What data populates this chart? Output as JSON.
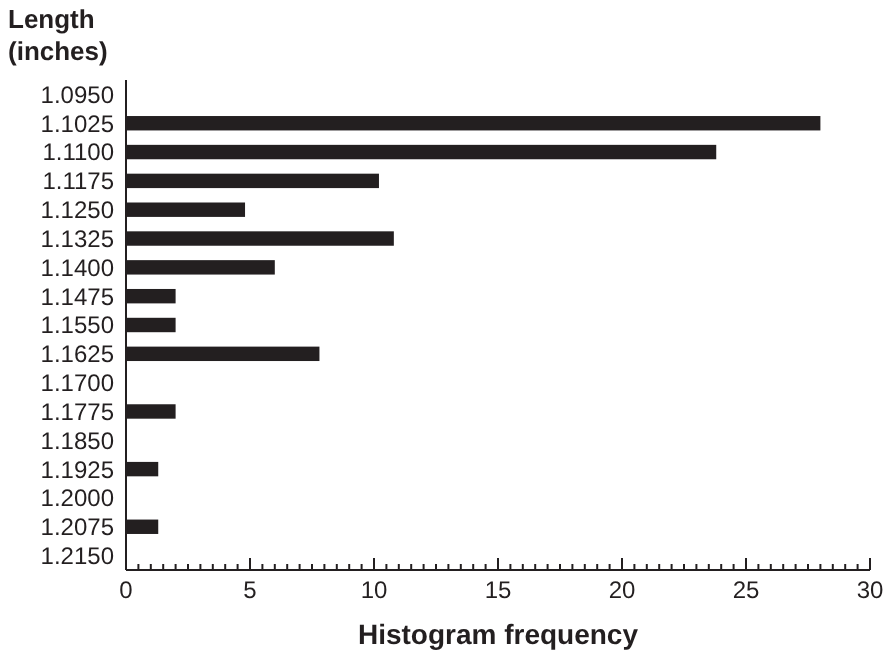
{
  "chart_data": {
    "type": "bar",
    "orientation": "horizontal",
    "ylabel": "Length\n(inches)",
    "xlabel": "Histogram frequency",
    "color": "#231f20",
    "categories": [
      "1.0950",
      "1.1025",
      "1.1100",
      "1.1175",
      "1.1250",
      "1.1325",
      "1.1400",
      "1.1475",
      "1.1550",
      "1.1625",
      "1.1700",
      "1.1775",
      "1.1850",
      "1.1925",
      "1.2000",
      "1.2075",
      "1.2150"
    ],
    "values": [
      0,
      28,
      23.8,
      10.2,
      4.8,
      10.8,
      6,
      2,
      2,
      7.8,
      0,
      2,
      0,
      1.3,
      0,
      1.3,
      0
    ],
    "xlim": [
      0,
      30
    ],
    "xticks": [
      0,
      {
        "value": 0.5,
        "label": null
      },
      {
        "value": 1,
        "label": null
      },
      {
        "value": 1.5,
        "label": null
      },
      {
        "value": 2,
        "label": null
      },
      {
        "value": 2.5,
        "label": null
      },
      {
        "value": 3,
        "label": null
      },
      {
        "value": 3.5,
        "label": null
      },
      {
        "value": 4,
        "label": null
      },
      {
        "value": 4.5,
        "label": null
      },
      5,
      {
        "value": 5.5,
        "label": null
      },
      {
        "value": 6,
        "label": null
      },
      {
        "value": 6.5,
        "label": null
      },
      {
        "value": 7,
        "label": null
      },
      {
        "value": 7.5,
        "label": null
      },
      {
        "value": 8,
        "label": null
      },
      {
        "value": 8.5,
        "label": null
      },
      {
        "value": 9,
        "label": null
      },
      {
        "value": 9.5,
        "label": null
      },
      10,
      {
        "value": 10.5,
        "label": null
      },
      {
        "value": 11,
        "label": null
      },
      {
        "value": 11.5,
        "label": null
      },
      {
        "value": 12,
        "label": null
      },
      {
        "value": 12.5,
        "label": null
      },
      {
        "value": 13,
        "label": null
      },
      {
        "value": 13.5,
        "label": null
      },
      {
        "value": 14,
        "label": null
      },
      {
        "value": 14.5,
        "label": null
      },
      15,
      {
        "value": 15.5,
        "label": null
      },
      {
        "value": 16,
        "label": null
      },
      {
        "value": 16.5,
        "label": null
      },
      {
        "value": 17,
        "label": null
      },
      {
        "value": 17.5,
        "label": null
      },
      {
        "value": 18,
        "label": null
      },
      {
        "value": 18.5,
        "label": null
      },
      {
        "value": 19,
        "label": null
      },
      {
        "value": 19.5,
        "label": null
      },
      20,
      {
        "value": 20.5,
        "label": null
      },
      {
        "value": 21,
        "label": null
      },
      {
        "value": 21.5,
        "label": null
      },
      {
        "value": 22,
        "label": null
      },
      {
        "value": 22.5,
        "label": null
      },
      {
        "value": 23,
        "label": null
      },
      {
        "value": 23.5,
        "label": null
      },
      {
        "value": 24,
        "label": null
      },
      {
        "value": 24.5,
        "label": null
      },
      25,
      {
        "value": 25.5,
        "label": null
      },
      {
        "value": 26,
        "label": null
      },
      {
        "value": 26.5,
        "label": null
      },
      {
        "value": 27,
        "label": null
      },
      {
        "value": 27.5,
        "label": null
      },
      {
        "value": 28,
        "label": null
      },
      {
        "value": 28.5,
        "label": null
      },
      {
        "value": 29,
        "label": null
      },
      {
        "value": 29.5,
        "label": null
      },
      30
    ]
  }
}
